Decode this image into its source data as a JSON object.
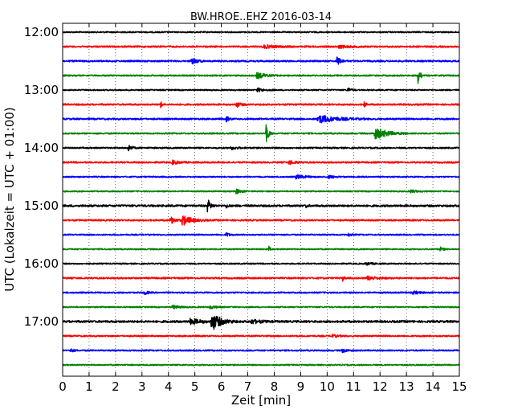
{
  "chart_data": {
    "type": "line",
    "title": "BW.HROE..EHZ 2016-03-14",
    "xlabel": "Zeit  [min]",
    "ylabel": "UTC (Lokalzeit = UTC + 01:00)",
    "xlim": [
      0,
      15
    ],
    "x_ticks": [
      0,
      1,
      2,
      3,
      4,
      5,
      6,
      7,
      8,
      9,
      10,
      11,
      12,
      13,
      14,
      15
    ],
    "x_tick_labels": [
      "0",
      "1",
      "2",
      "3",
      "4",
      "5",
      "6",
      "7",
      "8",
      "9",
      "10",
      "11",
      "12",
      "13",
      "14",
      "15"
    ],
    "y_tick_labels": [
      "12:00",
      "13:00",
      "14:00",
      "15:00",
      "16:00",
      "17:00"
    ],
    "y_tick_rows": [
      0,
      4,
      8,
      12,
      16,
      20
    ],
    "grid": true,
    "row_minutes": 15,
    "trace_colors": [
      "#000000",
      "#ff0000",
      "#0000ff",
      "#008000"
    ],
    "series": [
      {
        "start": "12:00",
        "events": [],
        "noise": 0.8
      },
      {
        "start": "12:15",
        "events": [
          {
            "t": 7.7,
            "a": 1.5,
            "d": 0.4
          },
          {
            "t": 10.5,
            "a": 1.5,
            "d": 0.3
          }
        ],
        "noise": 1.0
      },
      {
        "start": "12:30",
        "events": [
          {
            "t": 4.9,
            "a": 4,
            "d": 0.15
          },
          {
            "t": 10.4,
            "a": 5,
            "d": 0.12
          }
        ],
        "noise": 1.0
      },
      {
        "start": "12:45",
        "events": [
          {
            "t": 7.4,
            "a": 3,
            "d": 0.3
          },
          {
            "t": 13.45,
            "a": 18,
            "d": 0.05
          }
        ],
        "noise": 0.9
      },
      {
        "start": "13:00",
        "events": [
          {
            "t": 7.4,
            "a": 2,
            "d": 0.2
          },
          {
            "t": 10.8,
            "a": 2.5,
            "d": 0.1
          }
        ],
        "noise": 0.8
      },
      {
        "start": "13:15",
        "events": [
          {
            "t": 3.7,
            "a": 4,
            "d": 0.05
          },
          {
            "t": 6.6,
            "a": 2.5,
            "d": 0.15
          },
          {
            "t": 11.4,
            "a": 4,
            "d": 0.05
          }
        ],
        "noise": 1.0
      },
      {
        "start": "13:30",
        "events": [
          {
            "t": 6.2,
            "a": 3,
            "d": 0.08
          },
          {
            "t": 9.8,
            "a": 4,
            "d": 0.6
          }
        ],
        "noise": 1.0
      },
      {
        "start": "13:45",
        "events": [
          {
            "t": 7.7,
            "a": 11,
            "d": 0.08
          },
          {
            "t": 11.9,
            "a": 6,
            "d": 0.4
          }
        ],
        "noise": 0.9
      },
      {
        "start": "14:00",
        "events": [
          {
            "t": 2.5,
            "a": 4,
            "d": 0.1
          },
          {
            "t": 6.4,
            "a": 1.5,
            "d": 0.2
          }
        ],
        "noise": 0.9
      },
      {
        "start": "14:15",
        "events": [
          {
            "t": 4.2,
            "a": 2,
            "d": 0.2
          },
          {
            "t": 8.6,
            "a": 2,
            "d": 0.2
          }
        ],
        "noise": 1.0
      },
      {
        "start": "14:30",
        "events": [
          {
            "t": 8.9,
            "a": 2,
            "d": 0.3
          },
          {
            "t": 10.1,
            "a": 1.5,
            "d": 0.2
          }
        ],
        "noise": 0.8
      },
      {
        "start": "14:45",
        "events": [
          {
            "t": 6.6,
            "a": 2.5,
            "d": 0.15
          },
          {
            "t": 13.2,
            "a": 1.5,
            "d": 0.2
          }
        ],
        "noise": 0.8
      },
      {
        "start": "15:00",
        "events": [
          {
            "t": 5.5,
            "a": 7,
            "d": 0.1
          },
          {
            "t": 6.2,
            "a": 2.5,
            "d": 0.05
          },
          {
            "t": 9.2,
            "a": 2,
            "d": 0.05
          }
        ],
        "noise": 1.2
      },
      {
        "start": "15:15",
        "events": [
          {
            "t": 4.1,
            "a": 4,
            "d": 0.15
          },
          {
            "t": 4.6,
            "a": 5,
            "d": 0.3
          }
        ],
        "noise": 1.0
      },
      {
        "start": "15:30",
        "events": [
          {
            "t": 6.2,
            "a": 2.5,
            "d": 0.1
          },
          {
            "t": 10.8,
            "a": 2,
            "d": 0.1
          }
        ],
        "noise": 0.8
      },
      {
        "start": "15:45",
        "events": [
          {
            "t": 7.8,
            "a": 3,
            "d": 0.05
          },
          {
            "t": 14.3,
            "a": 2,
            "d": 0.1
          }
        ],
        "noise": 0.8
      },
      {
        "start": "16:00",
        "events": [
          {
            "t": 11.5,
            "a": 1.5,
            "d": 0.2
          }
        ],
        "noise": 0.8
      },
      {
        "start": "16:15",
        "events": [
          {
            "t": 10.6,
            "a": 3,
            "d": 0.05
          },
          {
            "t": 11.6,
            "a": 2,
            "d": 0.3
          }
        ],
        "noise": 1.0
      },
      {
        "start": "16:30",
        "events": [
          {
            "t": 3.1,
            "a": 2.5,
            "d": 0.1
          },
          {
            "t": 13.3,
            "a": 1.5,
            "d": 0.2
          }
        ],
        "noise": 0.9
      },
      {
        "start": "16:45",
        "events": [
          {
            "t": 4.2,
            "a": 2,
            "d": 0.2
          },
          {
            "t": 5.6,
            "a": 1.5,
            "d": 0.2
          }
        ],
        "noise": 0.8
      },
      {
        "start": "17:00",
        "events": [
          {
            "t": 4.9,
            "a": 3,
            "d": 0.3
          },
          {
            "t": 5.7,
            "a": 9,
            "d": 0.3
          },
          {
            "t": 7.2,
            "a": 2,
            "d": 0.3
          }
        ],
        "noise": 1.3
      },
      {
        "start": "17:15",
        "events": [
          {
            "t": 10.2,
            "a": 1.5,
            "d": 0.2
          }
        ],
        "noise": 0.9
      },
      {
        "start": "17:30",
        "events": [
          {
            "t": 0.3,
            "a": 2,
            "d": 0.1
          },
          {
            "t": 10.6,
            "a": 2,
            "d": 0.15
          }
        ],
        "noise": 0.9
      },
      {
        "start": "17:45",
        "events": [],
        "noise": 0.8
      }
    ]
  }
}
